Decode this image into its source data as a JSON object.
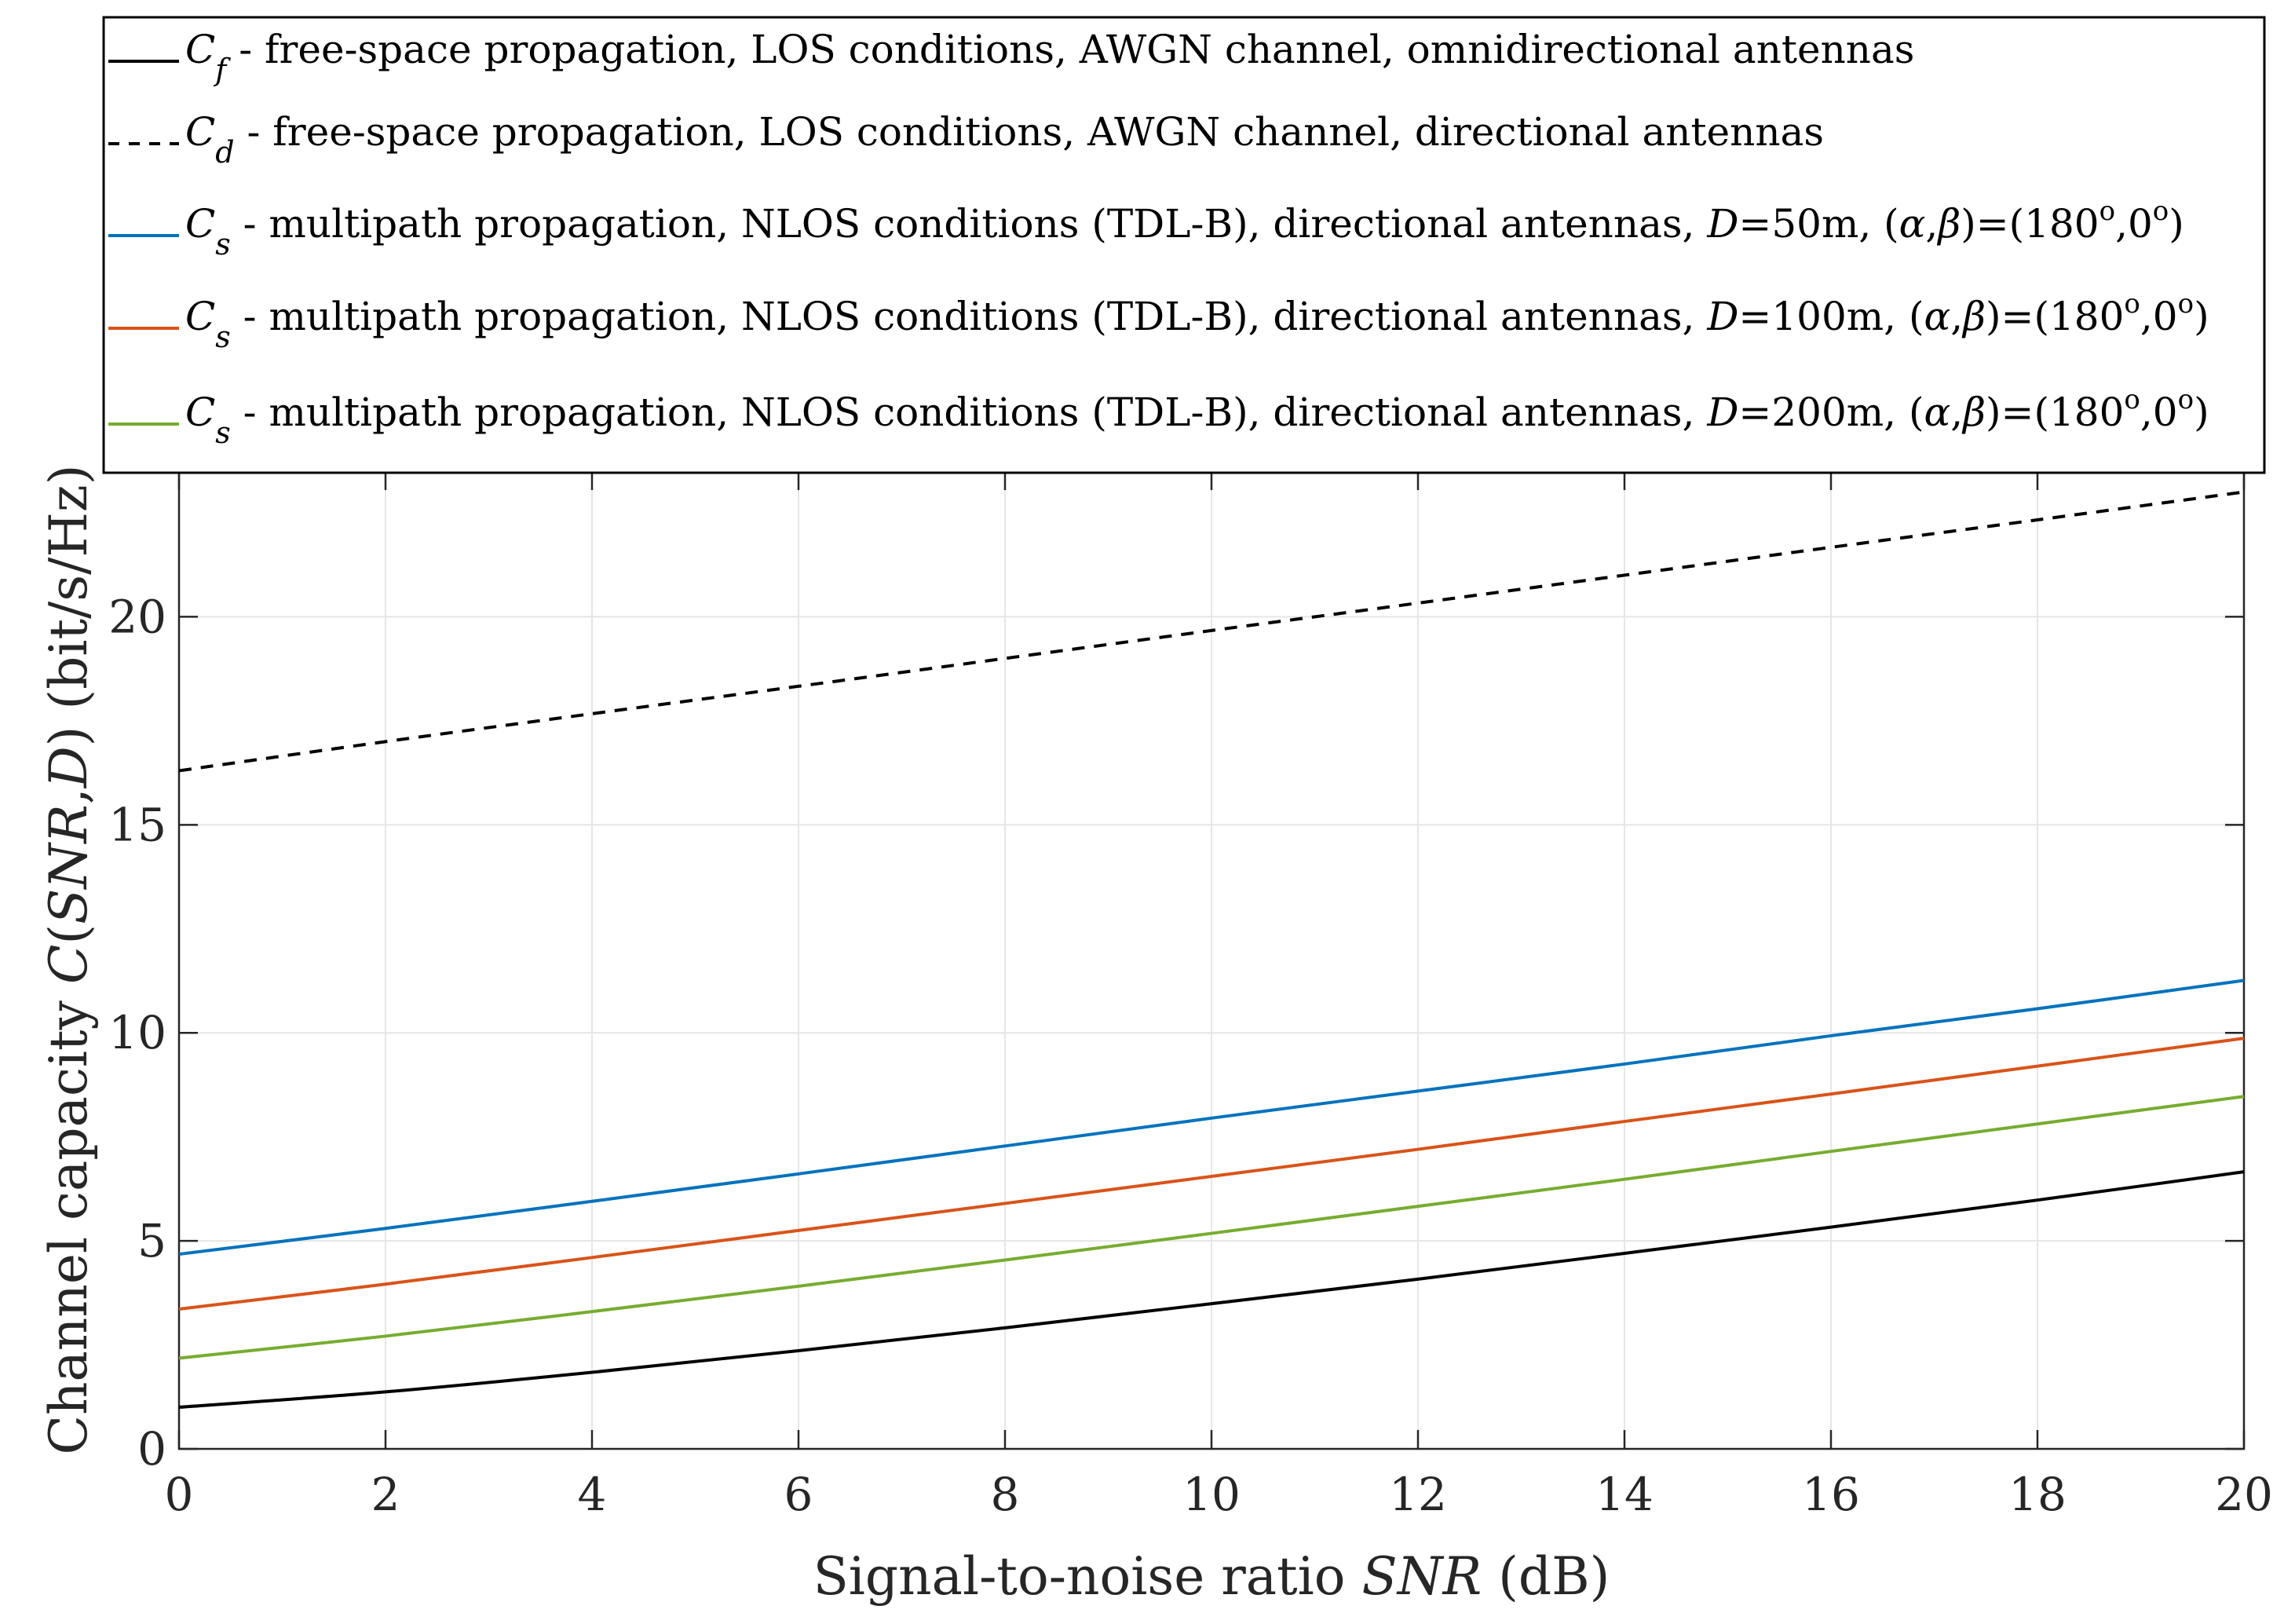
{
  "chart_data": {
    "type": "line",
    "xlabel_prefix": "Signal-to-noise ratio ",
    "xlabel_var": "SNR",
    "xlabel_suffix": " (dB)",
    "ylabel_prefix": "Channel capacity ",
    "ylabel_C": "C",
    "ylabel_open": "(",
    "ylabel_SNR": "SNR",
    "ylabel_comma": ",",
    "ylabel_D": "D",
    "ylabel_close": ") (bit/s/Hz)",
    "xlim": [
      0,
      20
    ],
    "ylim": [
      0,
      23.5
    ],
    "xticks": [
      "0",
      "2",
      "4",
      "6",
      "8",
      "10",
      "12",
      "14",
      "16",
      "18",
      "20"
    ],
    "yticks": [
      "0",
      "5",
      "10",
      "15",
      "20"
    ],
    "grid": true,
    "legend_position": "top",
    "x": [
      0,
      2,
      4,
      6,
      8,
      10,
      12,
      14,
      16,
      18,
      20
    ],
    "series": [
      {
        "name": "Cf",
        "color": "#000000",
        "dash": "solid",
        "values": [
          1.0,
          1.37,
          1.84,
          2.36,
          2.91,
          3.49,
          4.08,
          4.7,
          5.33,
          5.98,
          6.66
        ],
        "legend": {
          "sym": "C",
          "sub": "f",
          "text": " - free-space propagation, LOS conditions, AWGN channel, omnidirectional antennas"
        }
      },
      {
        "name": "Cd",
        "color": "#000000",
        "dash": "dashed",
        "values": [
          16.3,
          17.0,
          17.67,
          18.33,
          19.0,
          19.67,
          20.33,
          21.0,
          21.67,
          22.33,
          23.0
        ],
        "legend": {
          "sym": "C",
          "sub": "d",
          "text": " - free-space propagation, LOS conditions, AWGN channel, directional antennas"
        }
      },
      {
        "name": "Cs D=50m",
        "color": "#0072BD",
        "dash": "solid",
        "values": [
          4.68,
          5.3,
          5.95,
          6.61,
          7.28,
          7.95,
          8.6,
          9.25,
          9.93,
          10.58,
          11.26
        ],
        "legend": {
          "sym": "C",
          "sub": "s",
          "text": " - multipath propagation, NLOS conditions (TDL-B), directional antennas, ",
          "dvar": "D",
          "dval": "=50m, (",
          "alpha": "α",
          "comma": ",",
          "beta": "β",
          "angles_a": ")=(180",
          "o1": "o",
          "angles_b": ",0",
          "o2": "o",
          "close": ")"
        }
      },
      {
        "name": "Cs D=100m",
        "color": "#D95319",
        "dash": "solid",
        "values": [
          3.36,
          3.96,
          4.6,
          5.25,
          5.9,
          6.55,
          7.2,
          7.87,
          8.53,
          9.2,
          9.87
        ],
        "legend": {
          "sym": "C",
          "sub": "s",
          "text": " - multipath propagation, NLOS conditions (TDL-B), directional antennas, ",
          "dvar": "D",
          "dval": "=100m, (",
          "alpha": "α",
          "comma": ",",
          "beta": "β",
          "angles_a": ")=(180",
          "o1": "o",
          "angles_b": ",0",
          "o2": "o",
          "close": ")"
        }
      },
      {
        "name": "Cs D=200m",
        "color": "#77AC30",
        "dash": "solid",
        "values": [
          2.18,
          2.71,
          3.3,
          3.91,
          4.54,
          5.18,
          5.83,
          6.48,
          7.15,
          7.81,
          8.47
        ],
        "legend": {
          "sym": "C",
          "sub": "s",
          "text": " - multipath propagation, NLOS conditions (TDL-B), directional antennas, ",
          "dvar": "D",
          "dval": "=200m, (",
          "alpha": "α",
          "comma": ",",
          "beta": "β",
          "angles_a": ")=(180",
          "o1": "o",
          "angles_b": ",0",
          "o2": "o",
          "close": ")"
        }
      }
    ]
  },
  "colors": {
    "axis": "#262626",
    "grid": "#e6e6e6",
    "legend_border": "#000000"
  }
}
